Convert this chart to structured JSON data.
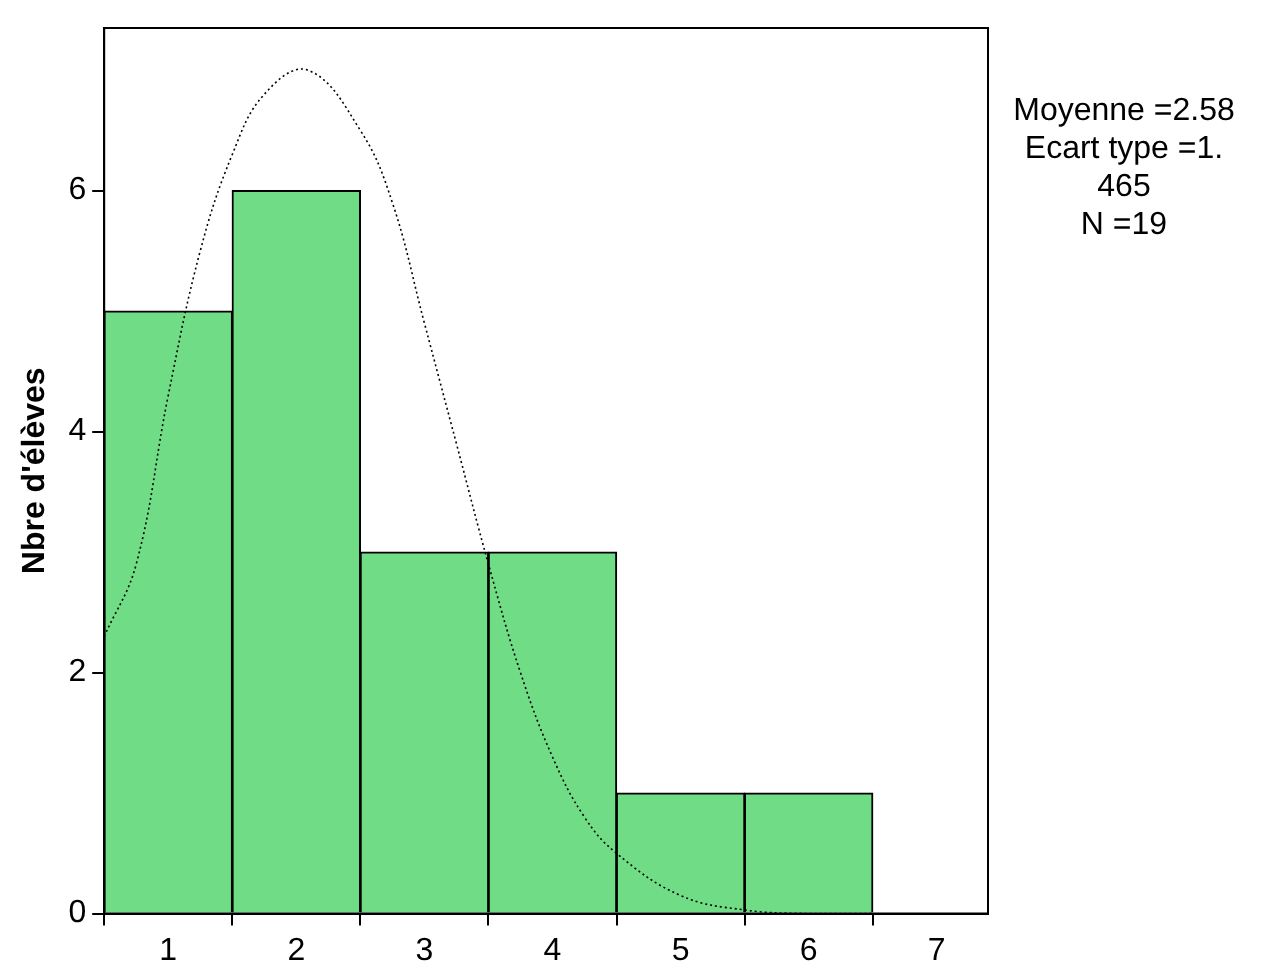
{
  "chart_data": {
    "type": "histogram",
    "ylabel": "Nbre d'élèves",
    "bins": [
      0.5,
      1.5,
      2.5,
      3.5,
      4.5,
      5.5,
      6.5
    ],
    "values": [
      5,
      6,
      3,
      3,
      1,
      1
    ],
    "color": "#70dc85",
    "xlim": [
      0.5,
      7.4
    ],
    "xticks": [
      1,
      2,
      3,
      4,
      5,
      6,
      7
    ],
    "ylim": [
      0,
      7.35
    ],
    "yticks": [
      0,
      2,
      4,
      6
    ],
    "series": [
      {
        "type": "line",
        "color": "#000000",
        "line_style": "dotted",
        "x": [
          0.5,
          0.75,
          1.0,
          1.25,
          1.5,
          1.75,
          2.09,
          2.5,
          2.75,
          3.0,
          3.25,
          3.5,
          3.75,
          4.0,
          4.25,
          4.5,
          5.0,
          5.5,
          6.0,
          6.5
        ],
        "values": [
          2.3,
          2.9,
          4.3,
          5.5,
          6.3,
          6.8,
          7.0,
          6.5,
          5.9,
          4.9,
          3.9,
          2.9,
          2.0,
          1.3,
          0.8,
          0.5,
          0.15,
          0.03,
          0.0,
          0.0
        ]
      }
    ],
    "annotations": [
      "Moyenne =2.58",
      "Ecart type =1.",
      "465",
      "N =19"
    ]
  }
}
